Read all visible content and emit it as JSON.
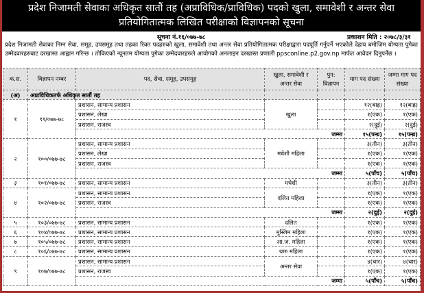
{
  "title_line1": "प्रदेश निजामती सेवाका अधिकृत सातौं तह (अप्राविधिक/प्राविधिक) पदको खुला, समावेशी र अन्तर सेवा",
  "title_line2": "प्रतियोगितात्मक लिखित परीक्षाको विज्ञापनको सूचना",
  "notice_no": "सूचना नं.१६/०७७-७८",
  "publish_date": "प्रकाशन मिति : २०७८/३/३१",
  "paragraph": "प्रदेश निजामती सेवाका निम्न सेवा, समूह, उपसमूह तथा तहका रिक्त पदहरुको खुला, समावेशी तथा अन्तर सेवा प्रतियोगितात्मक परीक्षाद्वारा पदपूर्ति गर्नुपर्ने भएकोले देहाय बमोजिम योग्यता पुगेका उम्मेदवारहरुबाट दरखास्त आह्वान गरिन्छ । तोकिएको न्यूनतम योग्यता पुगेका उम्मेदवारहरुले आयोगको अनलाइन दरखास्त प्रणाली ppsconline.p2.gov.np मार्फत आवेदन दिनुपर्नेछ ।",
  "table": {
    "headers": [
      "क.स.",
      "विज्ञापन नम्बर",
      "पद, सेवा, समूह, उपसमूह",
      "खुला, समावेशी र अन्तर सेवा",
      "पुन: विज्ञापन",
      "माग पद संख्या",
      "जम्मा माग पद संख्या"
    ],
    "section_code": "(अ)",
    "section_label": "अप्राविधिकतर्फ अधिकृत सातौं तह",
    "total_label": "जम्मा",
    "groups": [
      {
        "sn": "१",
        "ad": "९९/०७७-७८",
        "type": "खुला",
        "posts": [
          [
            "प्रशासन, सामान्य प्रशासन",
            "१२(बाह्र)",
            "१२(बाह्र)"
          ],
          [
            "प्रशासन, लेखा",
            "१(एक)",
            "१(एक)"
          ],
          [
            "प्रशासन, राजस्व",
            "२(दुई)",
            "२(दुई)"
          ]
        ],
        "total": [
          "१५(पन्ध्र)",
          "१५(पन्ध्र)"
        ]
      },
      {
        "sn": "२",
        "ad": "१००/०७७-७८",
        "type": "मधेशी महिला",
        "posts": [
          [
            "प्रशासन, सामान्य प्रशासन",
            "३(तीन)",
            "३(तीन)"
          ],
          [
            "प्रशासन, लेखा",
            "१(एक)",
            "१(एक)"
          ],
          [
            "प्रशासन, राजस्व",
            "१(एक)",
            "१(एक)"
          ]
        ],
        "total": [
          "५(पाँच)",
          "५(पाँच)"
        ]
      },
      {
        "sn": "३",
        "ad": "१०१/०७७-७८",
        "type": "मधेशी",
        "posts": [
          [
            "प्रशासन, सामान्य प्रशासन",
            "३(तीन)",
            "३(तीन)"
          ]
        ]
      },
      {
        "sn": "४",
        "ad": "१०२/०७७-७८",
        "type": "दलित महिला",
        "posts": [
          [
            "प्रशासन, सामान्य प्रशासन",
            "१(एक)",
            "१(एक)"
          ],
          [
            "प्रशासन, राजस्व",
            "१(एक)",
            "१(एक)"
          ]
        ],
        "total": [
          "२(दुई)",
          "२(दुई)"
        ]
      },
      {
        "sn": "५",
        "ad": "१०३/०७७-७८",
        "type": "दलित",
        "posts": [
          [
            "प्रशासन, सामान्य प्रशासन",
            "१(एक)",
            "१(एक)"
          ]
        ]
      },
      {
        "sn": "६",
        "ad": "१०४/०७७-७८",
        "type": "मुस्लिम महिला",
        "posts": [
          [
            "प्रशासन, सामान्य प्रशासन",
            "१(एक)",
            "१(एक)"
          ]
        ]
      },
      {
        "sn": "७",
        "ad": "१०५/०७७-७८",
        "type": "आ.ज. महिला",
        "posts": [
          [
            "प्रशासन, सामान्य प्रशासन",
            "१(एक)",
            "१(एक)"
          ]
        ]
      },
      {
        "sn": "८",
        "ad": "१०६/०७७-७८",
        "type": "थारु महिला",
        "posts": [
          [
            "प्रशासन, सामान्य प्रशासन",
            "१(एक)",
            "१(एक)"
          ]
        ]
      },
      {
        "sn": "९",
        "ad": "१०७/०७७-७८",
        "type": "अन्तर सेवा",
        "posts": [
          [
            "प्रशासन, सामान्य प्रशासन",
            "४(चार)",
            "४(चार)"
          ],
          [
            "प्रशासन, राजस्व",
            "१(एक)",
            "१(एक)"
          ]
        ],
        "total": [
          "५(पाँच)",
          "५(पाँच)"
        ]
      }
    ]
  }
}
